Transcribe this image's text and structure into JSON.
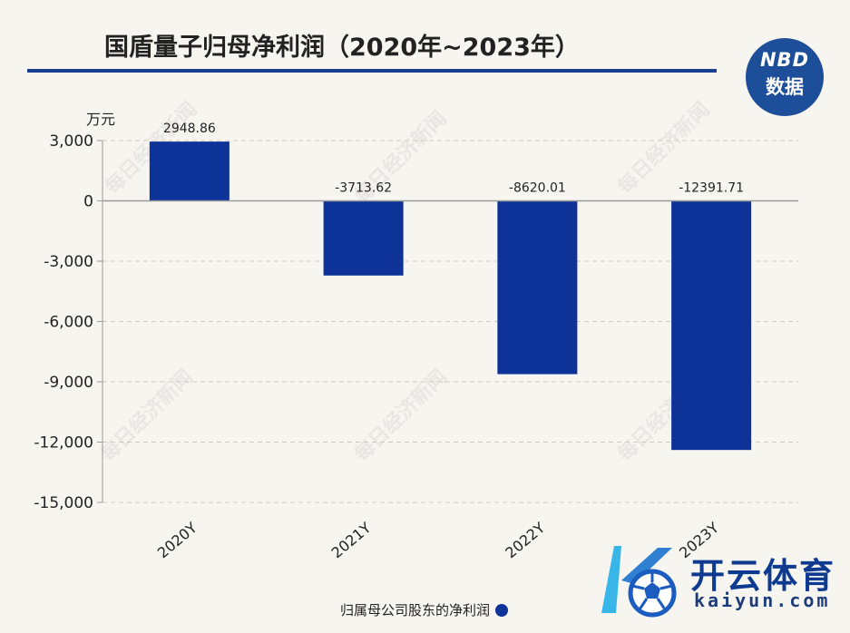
{
  "header": {
    "title": "国盾量子归母净利润（2020年~2023年）",
    "logo_line1": "NBD",
    "logo_line2": "数据"
  },
  "chart_data": {
    "type": "bar",
    "title": "国盾量子归母净利润（2020年~2023年）",
    "ylabel": "万元",
    "xlabel": "",
    "categories": [
      "2020Y",
      "2021Y",
      "2022Y",
      "2023Y"
    ],
    "series": [
      {
        "name": "归属母公司股东的净利润",
        "values": [
          2948.86,
          -3713.62,
          -8620.01,
          -12391.71
        ],
        "color": "#0e3398"
      }
    ],
    "data_labels": [
      "2948.86",
      "-3713.62",
      "-8620.01",
      "-12391.71"
    ],
    "yticks": [
      3000,
      0,
      -3000,
      -6000,
      -9000,
      -12000,
      -15000
    ],
    "ytick_labels": [
      "3,000",
      "0",
      "-3,000",
      "-6,000",
      "-9,000",
      "-12,000",
      "-15,000"
    ],
    "ylim": [
      -15000,
      3000
    ],
    "grid": true,
    "legend_position": "bottom-center"
  },
  "legend": {
    "label": "归属母公司股东的净利润"
  },
  "watermark": {
    "text": "每日经济新闻"
  },
  "brand": {
    "name_cn": "开云体育",
    "name_en": "kaiyun.com"
  }
}
